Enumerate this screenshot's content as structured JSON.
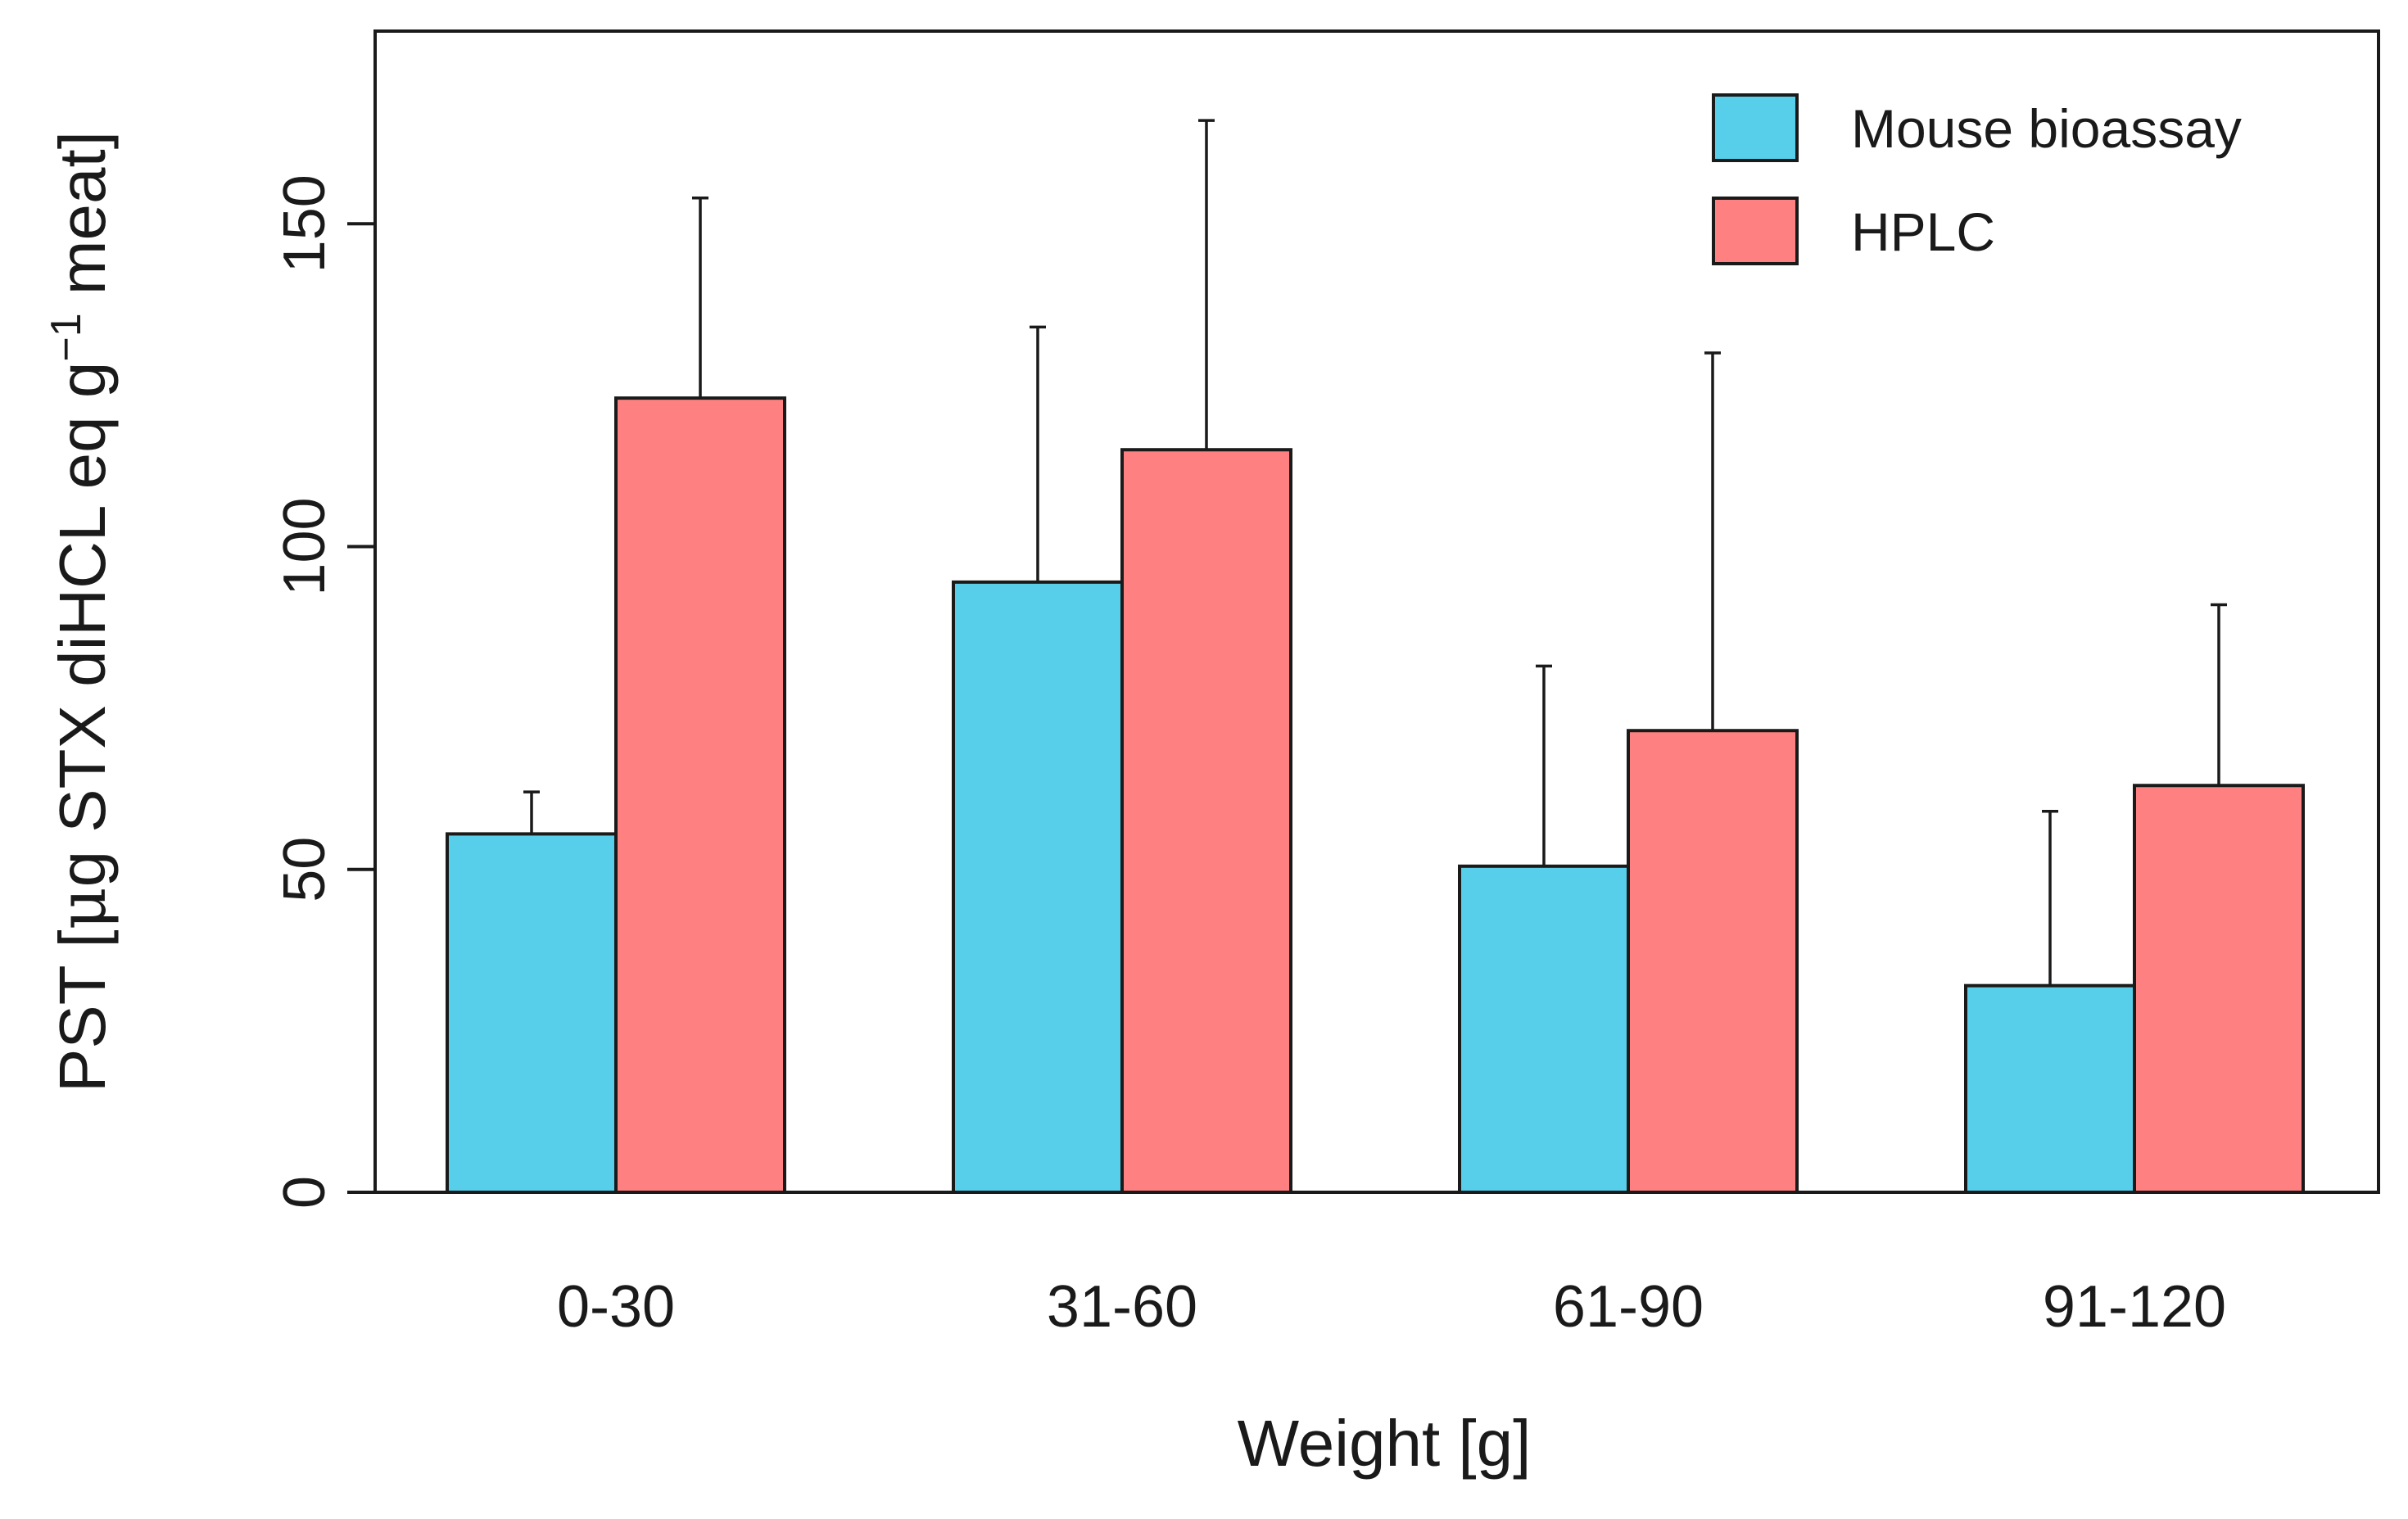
{
  "chart_data": {
    "type": "bar",
    "title": "",
    "xlabel": "Weight [g]",
    "ylabel": {
      "prefix": "PST [",
      "mu": "μ",
      "mid": "g STX diHCL eq g",
      "sup": "−1",
      "suffix": " meat]"
    },
    "ylim": [
      0,
      180
    ],
    "yticks": [
      0,
      50,
      100,
      150
    ],
    "categories": [
      "0-30",
      "31-60",
      "61-90",
      "91-120"
    ],
    "series": [
      {
        "name": "Mouse bioassay",
        "color": "#57cfeb",
        "values": [
          55.5,
          94.5,
          50.5,
          32
        ],
        "error_upper": [
          62,
          134,
          81.5,
          59
        ]
      },
      {
        "name": "HPLC",
        "color": "#ff8080",
        "values": [
          123,
          115,
          71.5,
          63
        ],
        "error_upper": [
          154,
          166,
          130,
          91
        ]
      }
    ],
    "legend_position": "top-right",
    "error_bars": "upper only"
  }
}
